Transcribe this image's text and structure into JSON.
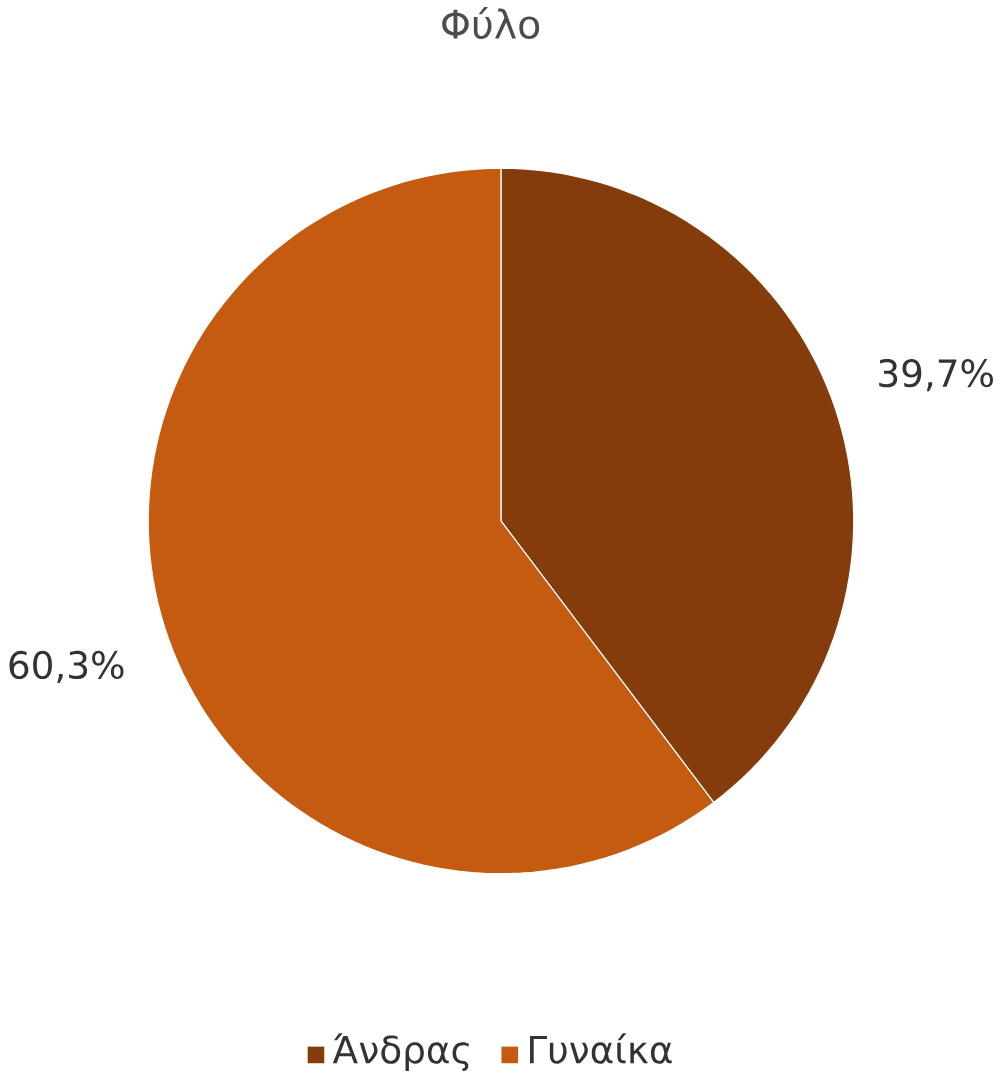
{
  "chart_data": {
    "type": "pie",
    "title": "Φύλο",
    "categories": [
      "Άνδρας",
      "Γυναίκα"
    ],
    "values": [
      39.7,
      60.3
    ],
    "colors": [
      "#843c0c",
      "#c55a11"
    ],
    "value_labels": [
      "39,7%",
      "60,3%"
    ],
    "legend": "bottom"
  }
}
